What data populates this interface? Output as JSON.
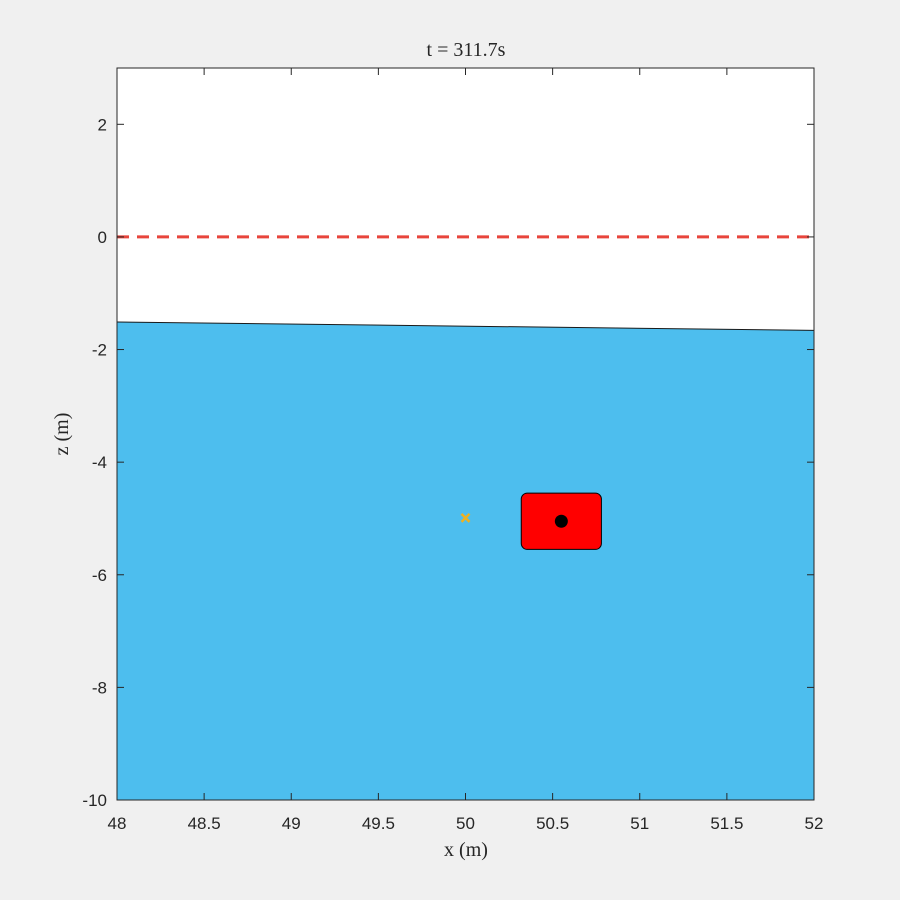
{
  "chart_data": {
    "type": "scatter",
    "title": "t = 311.7s",
    "xlabel": "x (m)",
    "ylabel": "z (m)",
    "xlim": [
      48,
      52
    ],
    "ylim": [
      -10,
      3
    ],
    "x_ticks": [
      48,
      48.5,
      49,
      49.5,
      50,
      50.5,
      51,
      51.5,
      52
    ],
    "x_tick_labels": [
      "48",
      "48.5",
      "49",
      "49.5",
      "50",
      "50.5",
      "51",
      "51.5",
      "52"
    ],
    "y_ticks": [
      2,
      0,
      -2,
      -4,
      -6,
      -8,
      -10
    ],
    "y_tick_labels": [
      "2",
      "0",
      "-2",
      "-4",
      "-6",
      "-8",
      "-10"
    ],
    "grid": false,
    "seabed_line": {
      "x": [
        48,
        52
      ],
      "z": [
        -1.51,
        -1.66
      ],
      "fill_color": "#4dbeee",
      "fill_to": -10
    },
    "reference_line": {
      "z": 0,
      "style": "dashed",
      "color": "#e8453c"
    },
    "vehicle_box": {
      "x_range": [
        50.32,
        50.78
      ],
      "z_range": [
        -4.55,
        -5.55
      ],
      "color": "#ff0000"
    },
    "vehicle_center": {
      "x": 50.55,
      "z": -5.05,
      "color": "#000000"
    },
    "target_marker": {
      "x": 50.0,
      "z": -4.99,
      "marker": "x",
      "color": "#edb120"
    }
  },
  "colors": {
    "background": "#f0f0f0",
    "axes_background": "#ffffff",
    "axis_color": "#262626"
  }
}
